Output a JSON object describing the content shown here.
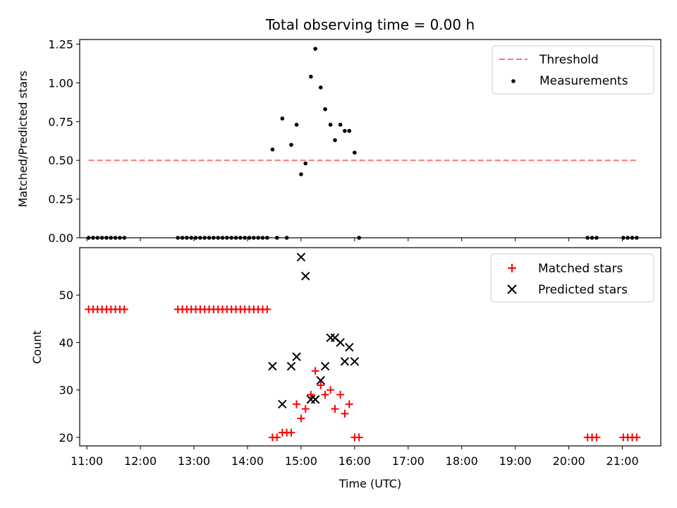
{
  "chart_data": [
    {
      "type": "scatter",
      "title": "Total observing time = 0.00 h",
      "xlabel": "",
      "ylabel": "Matched/Predicted stars",
      "ylim": [
        0,
        1.28
      ],
      "yticks": [
        "0.00",
        "0.25",
        "0.50",
        "0.75",
        "1.00",
        "1.25"
      ],
      "grid": false,
      "legend_position": "top-right",
      "threshold": {
        "name": "Threshold",
        "y": 0.5,
        "x_start": "11:02",
        "x_end": "21:15",
        "color": "#ff7373"
      },
      "measurements": {
        "name": "Measurements",
        "color": "#000000",
        "points": [
          [
            "11:02",
            0
          ],
          [
            "11:07",
            0
          ],
          [
            "11:12",
            0
          ],
          [
            "11:17",
            0
          ],
          [
            "11:22",
            0
          ],
          [
            "11:27",
            0
          ],
          [
            "11:32",
            0
          ],
          [
            "11:37",
            0
          ],
          [
            "11:42",
            0
          ],
          [
            "12:42",
            0
          ],
          [
            "12:47",
            0
          ],
          [
            "12:52",
            0
          ],
          [
            "12:57",
            0
          ],
          [
            "13:02",
            0
          ],
          [
            "13:07",
            0
          ],
          [
            "13:12",
            0
          ],
          [
            "13:17",
            0
          ],
          [
            "13:22",
            0
          ],
          [
            "13:27",
            0
          ],
          [
            "13:32",
            0
          ],
          [
            "13:37",
            0
          ],
          [
            "13:42",
            0
          ],
          [
            "13:47",
            0
          ],
          [
            "13:52",
            0
          ],
          [
            "13:57",
            0
          ],
          [
            "14:02",
            0
          ],
          [
            "14:07",
            0
          ],
          [
            "14:12",
            0
          ],
          [
            "14:17",
            0
          ],
          [
            "14:22",
            0
          ],
          [
            "14:28",
            0.57
          ],
          [
            "14:33",
            0
          ],
          [
            "14:39",
            0.77
          ],
          [
            "14:44",
            0
          ],
          [
            "14:49",
            0.6
          ],
          [
            "14:55",
            0.73
          ],
          [
            "15:00",
            0.41
          ],
          [
            "15:05",
            0.48
          ],
          [
            "15:11",
            1.04
          ],
          [
            "15:16",
            1.22
          ],
          [
            "15:22",
            0.97
          ],
          [
            "15:27",
            0.83
          ],
          [
            "15:33",
            0.73
          ],
          [
            "15:38",
            0.63
          ],
          [
            "15:44",
            0.73
          ],
          [
            "15:49",
            0.69
          ],
          [
            "15:54",
            0.69
          ],
          [
            "16:00",
            0.55
          ],
          [
            "16:05",
            0
          ],
          [
            "20:21",
            0
          ],
          [
            "20:26",
            0
          ],
          [
            "20:31",
            0
          ],
          [
            "21:01",
            0
          ],
          [
            "21:06",
            0
          ],
          [
            "21:11",
            0
          ],
          [
            "21:16",
            0
          ]
        ]
      }
    },
    {
      "type": "scatter",
      "title": "",
      "xlabel": "Time (UTC)",
      "ylabel": "Count",
      "ylim": [
        18.2,
        60
      ],
      "yticks": [
        "20",
        "30",
        "40",
        "50"
      ],
      "xticks": [
        "11:00",
        "12:00",
        "13:00",
        "14:00",
        "15:00",
        "16:00",
        "17:00",
        "18:00",
        "19:00",
        "20:00",
        "21:00"
      ],
      "xlim": [
        "10:52",
        "21:43"
      ],
      "grid": false,
      "legend_position": "top-right",
      "series": [
        {
          "name": "Matched stars",
          "marker": "+",
          "color": "#ff0000",
          "points": [
            [
              "11:02",
              47
            ],
            [
              "11:07",
              47
            ],
            [
              "11:12",
              47
            ],
            [
              "11:17",
              47
            ],
            [
              "11:22",
              47
            ],
            [
              "11:27",
              47
            ],
            [
              "11:32",
              47
            ],
            [
              "11:37",
              47
            ],
            [
              "11:42",
              47
            ],
            [
              "12:42",
              47
            ],
            [
              "12:47",
              47
            ],
            [
              "12:52",
              47
            ],
            [
              "12:57",
              47
            ],
            [
              "13:02",
              47
            ],
            [
              "13:07",
              47
            ],
            [
              "13:12",
              47
            ],
            [
              "13:17",
              47
            ],
            [
              "13:22",
              47
            ],
            [
              "13:27",
              47
            ],
            [
              "13:32",
              47
            ],
            [
              "13:37",
              47
            ],
            [
              "13:42",
              47
            ],
            [
              "13:47",
              47
            ],
            [
              "13:52",
              47
            ],
            [
              "13:57",
              47
            ],
            [
              "14:02",
              47
            ],
            [
              "14:07",
              47
            ],
            [
              "14:12",
              47
            ],
            [
              "14:17",
              47
            ],
            [
              "14:22",
              47
            ],
            [
              "14:28",
              20
            ],
            [
              "14:33",
              20
            ],
            [
              "14:39",
              21
            ],
            [
              "14:44",
              21
            ],
            [
              "14:49",
              21
            ],
            [
              "14:55",
              27
            ],
            [
              "15:00",
              24
            ],
            [
              "15:05",
              26
            ],
            [
              "15:11",
              29
            ],
            [
              "15:16",
              34
            ],
            [
              "15:22",
              31
            ],
            [
              "15:27",
              29
            ],
            [
              "15:33",
              30
            ],
            [
              "15:38",
              26
            ],
            [
              "15:44",
              29
            ],
            [
              "15:49",
              25
            ],
            [
              "15:54",
              27
            ],
            [
              "16:00",
              20
            ],
            [
              "16:05",
              20
            ],
            [
              "20:21",
              20
            ],
            [
              "20:26",
              20
            ],
            [
              "20:31",
              20
            ],
            [
              "21:01",
              20
            ],
            [
              "21:06",
              20
            ],
            [
              "21:11",
              20
            ],
            [
              "21:16",
              20
            ]
          ]
        },
        {
          "name": "Predicted stars",
          "marker": "x",
          "color": "#000000",
          "points": [
            [
              "14:28",
              35
            ],
            [
              "14:39",
              27
            ],
            [
              "14:49",
              35
            ],
            [
              "14:55",
              37
            ],
            [
              "15:00",
              58
            ],
            [
              "15:05",
              54
            ],
            [
              "15:11",
              28
            ],
            [
              "15:16",
              28
            ],
            [
              "15:22",
              32
            ],
            [
              "15:27",
              35
            ],
            [
              "15:33",
              41
            ],
            [
              "15:38",
              41
            ],
            [
              "15:44",
              40
            ],
            [
              "15:49",
              36
            ],
            [
              "15:54",
              39
            ],
            [
              "16:00",
              36
            ]
          ]
        }
      ]
    }
  ]
}
